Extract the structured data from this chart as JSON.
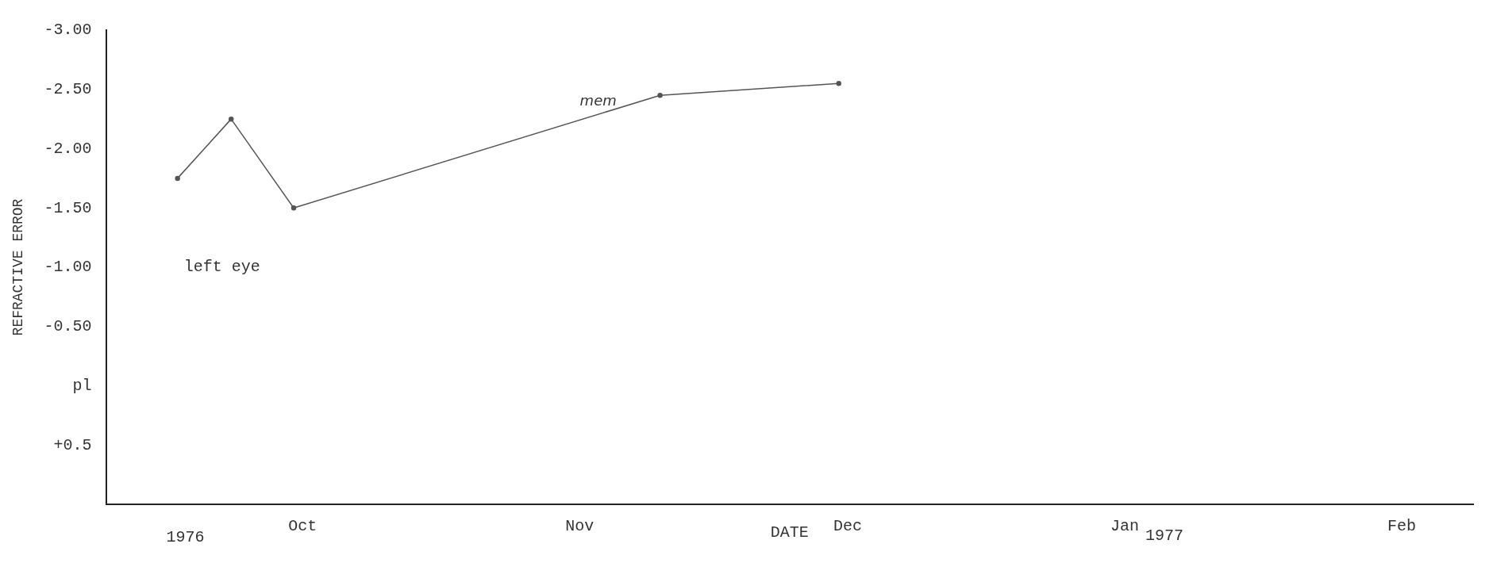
{
  "chart_data": {
    "type": "line",
    "xlabel": "DATE",
    "ylabel": "REFRACTIVE ERROR",
    "x": [
      "1976-09-17",
      "1976-09-23",
      "1976-09-30",
      "1976-11-10",
      "1976-11-30"
    ],
    "series": [
      {
        "name": "left eye",
        "color": "#555555",
        "values": [
          -1.75,
          -2.25,
          -1.5,
          -2.45,
          -2.55
        ]
      }
    ],
    "xlim": [
      "1976-09-09",
      "1977-02-09"
    ],
    "xticks": [
      {
        "value": "1976-10-01",
        "label": "Oct"
      },
      {
        "value": "1976-11-01",
        "label": "Nov"
      },
      {
        "value": "1976-12-01",
        "label": "Dec"
      },
      {
        "value": "1977-01-01",
        "label": "Jan"
      },
      {
        "value": "1977-02-01",
        "label": "Feb"
      }
    ],
    "ylim": [
      1,
      -3
    ],
    "yticks": [
      {
        "value": -3,
        "label": "-3.00"
      },
      {
        "value": -2.5,
        "label": "-2.50"
      },
      {
        "value": -2,
        "label": "-2.00"
      },
      {
        "value": -1.5,
        "label": "-1.50"
      },
      {
        "value": -1,
        "label": "-1.00"
      },
      {
        "value": -0.5,
        "label": "-0.50"
      },
      {
        "value": 0,
        "label": "pl"
      },
      {
        "value": 0.5,
        "label": "+0.5"
      }
    ],
    "annotations": [
      "1976",
      "1977",
      "mem"
    ],
    "grid": false,
    "legend": false,
    "marker": "circle",
    "line_style": "solid"
  }
}
